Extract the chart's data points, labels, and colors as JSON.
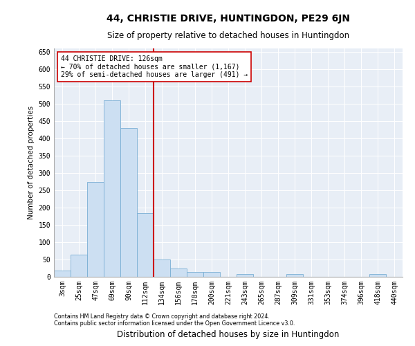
{
  "title": "44, CHRISTIE DRIVE, HUNTINGDON, PE29 6JN",
  "subtitle": "Size of property relative to detached houses in Huntingdon",
  "xlabel": "Distribution of detached houses by size in Huntingdon",
  "ylabel": "Number of detached properties",
  "categories": [
    "3sqm",
    "25sqm",
    "47sqm",
    "69sqm",
    "90sqm",
    "112sqm",
    "134sqm",
    "156sqm",
    "178sqm",
    "200sqm",
    "221sqm",
    "243sqm",
    "265sqm",
    "287sqm",
    "309sqm",
    "331sqm",
    "353sqm",
    "374sqm",
    "396sqm",
    "418sqm",
    "440sqm"
  ],
  "values": [
    18,
    65,
    275,
    510,
    430,
    185,
    50,
    25,
    15,
    15,
    0,
    8,
    0,
    0,
    8,
    0,
    0,
    0,
    0,
    8,
    0
  ],
  "bar_color": "#ccdff2",
  "bar_edge_color": "#7aafd4",
  "vline_position": 5.5,
  "vline_color": "#cc0000",
  "annotation_text": "44 CHRISTIE DRIVE: 126sqm\n← 70% of detached houses are smaller (1,167)\n29% of semi-detached houses are larger (491) →",
  "annotation_box_color": "white",
  "annotation_box_edge": "#cc0000",
  "ylim": [
    0,
    660
  ],
  "yticks": [
    0,
    50,
    100,
    150,
    200,
    250,
    300,
    350,
    400,
    450,
    500,
    550,
    600,
    650
  ],
  "plot_bg": "#e8eef6",
  "footer1": "Contains HM Land Registry data © Crown copyright and database right 2024.",
  "footer2": "Contains public sector information licensed under the Open Government Licence v3.0.",
  "title_fontsize": 10,
  "subtitle_fontsize": 8.5,
  "xlabel_fontsize": 8.5,
  "ylabel_fontsize": 7.5,
  "tick_fontsize": 7,
  "annotation_fontsize": 7,
  "footer_fontsize": 5.8
}
